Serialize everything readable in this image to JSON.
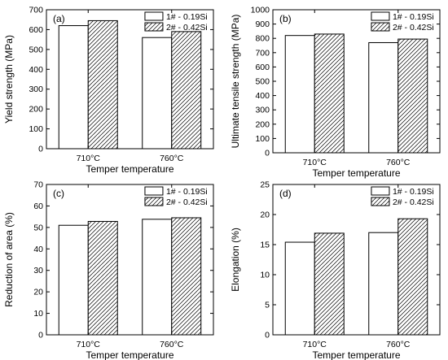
{
  "chart_data": [
    {
      "type": "bar",
      "panel_label": "(a)",
      "xlabel": "Temper temperature",
      "ylabel": "Yield strength (MPa)",
      "categories": [
        "710°C",
        "760°C"
      ],
      "ylim": [
        0,
        700
      ],
      "yticks": [
        "0",
        "100",
        "200",
        "300",
        "400",
        "500",
        "600",
        "700"
      ],
      "series": [
        {
          "name": "1# - 0.19Si",
          "values": [
            620,
            560
          ],
          "fill": "plain"
        },
        {
          "name": "2# - 0.42Si",
          "values": [
            645,
            590
          ],
          "fill": "hatched"
        }
      ],
      "legend": "top-right",
      "grid": false
    },
    {
      "type": "bar",
      "panel_label": "(b)",
      "xlabel": "Temper temperature",
      "ylabel": "Ultimate tensile strength (MPa)",
      "categories": [
        "710°C",
        "760°C"
      ],
      "ylim": [
        0,
        1000
      ],
      "yticks": [
        "0",
        "100",
        "200",
        "300",
        "400",
        "500",
        "600",
        "700",
        "800",
        "900",
        "1000"
      ],
      "series": [
        {
          "name": "1# - 0.19Si",
          "values": [
            820,
            770
          ],
          "fill": "plain"
        },
        {
          "name": "2# - 0.42Si",
          "values": [
            830,
            795
          ],
          "fill": "hatched"
        }
      ],
      "legend": "top-right",
      "grid": false
    },
    {
      "type": "bar",
      "panel_label": "(c)",
      "xlabel": "Temper temperature",
      "ylabel": "Reduction of area (%)",
      "categories": [
        "710°C",
        "760°C"
      ],
      "ylim": [
        0,
        70
      ],
      "yticks": [
        "0",
        "10",
        "20",
        "30",
        "40",
        "50",
        "60",
        "70"
      ],
      "series": [
        {
          "name": "1# - 0.19Si",
          "values": [
            51,
            53.8
          ],
          "fill": "plain"
        },
        {
          "name": "2# - 0.42Si",
          "values": [
            52.8,
            54.5
          ],
          "fill": "hatched"
        }
      ],
      "legend": "top-right",
      "grid": false
    },
    {
      "type": "bar",
      "panel_label": "(d)",
      "xlabel": "Temper temperature",
      "ylabel": "Elongation (%)",
      "categories": [
        "710°C",
        "760°C"
      ],
      "ylim": [
        0,
        25
      ],
      "yticks": [
        "0",
        "5",
        "10",
        "15",
        "20",
        "25"
      ],
      "series": [
        {
          "name": "1# - 0.19Si",
          "values": [
            15.4,
            17
          ],
          "fill": "plain"
        },
        {
          "name": "2# - 0.42Si",
          "values": [
            16.9,
            19.3
          ],
          "fill": "hatched"
        }
      ],
      "legend": "top-right",
      "grid": false
    }
  ]
}
